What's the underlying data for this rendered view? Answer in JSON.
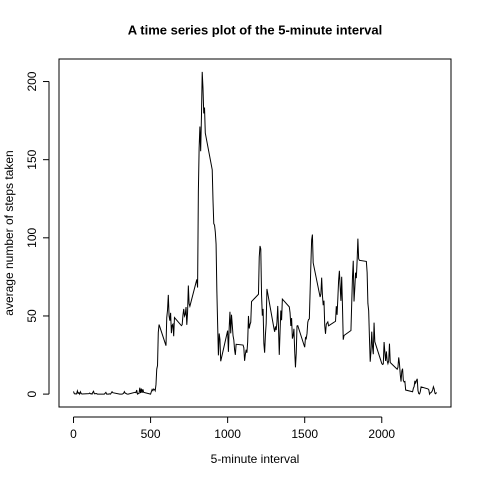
{
  "chart_data": {
    "type": "line",
    "title": "A time series plot of the 5-minute interval",
    "x_label": "5-minute interval",
    "y_label": "average number of steps taken",
    "color": "#000000",
    "x": [
      0,
      5,
      10,
      15,
      20,
      25,
      30,
      35,
      40,
      45,
      50,
      55,
      100,
      105,
      110,
      115,
      120,
      125,
      130,
      135,
      140,
      145,
      150,
      155,
      200,
      210,
      215,
      220,
      225,
      230,
      235,
      240,
      250,
      255,
      300,
      310,
      315,
      320,
      325,
      330,
      335,
      340,
      345,
      350,
      355,
      400,
      405,
      410,
      415,
      420,
      425,
      430,
      435,
      440,
      445,
      450,
      455,
      500,
      505,
      510,
      515,
      520,
      525,
      530,
      535,
      540,
      545,
      550,
      555,
      600,
      605,
      610,
      615,
      620,
      625,
      630,
      635,
      640,
      645,
      650,
      655,
      700,
      705,
      710,
      715,
      720,
      725,
      730,
      735,
      740,
      745,
      750,
      755,
      800,
      805,
      810,
      815,
      820,
      825,
      830,
      835,
      840,
      845,
      850,
      855,
      900,
      905,
      910,
      915,
      920,
      925,
      930,
      935,
      940,
      945,
      950,
      955,
      1000,
      1005,
      1010,
      1015,
      1020,
      1025,
      1030,
      1035,
      1040,
      1045,
      1050,
      1055,
      1100,
      1105,
      1110,
      1115,
      1120,
      1125,
      1130,
      1135,
      1140,
      1145,
      1150,
      1155,
      1200,
      1205,
      1210,
      1215,
      1220,
      1225,
      1230,
      1235,
      1240,
      1245,
      1250,
      1255,
      1300,
      1305,
      1310,
      1315,
      1320,
      1325,
      1330,
      1335,
      1340,
      1345,
      1350,
      1355,
      1400,
      1405,
      1410,
      1415,
      1420,
      1425,
      1430,
      1435,
      1440,
      1445,
      1450,
      1455,
      1500,
      1505,
      1510,
      1515,
      1520,
      1525,
      1530,
      1535,
      1540,
      1545,
      1550,
      1555,
      1600,
      1605,
      1610,
      1615,
      1620,
      1625,
      1630,
      1635,
      1640,
      1645,
      1650,
      1655,
      1700,
      1705,
      1710,
      1715,
      1720,
      1725,
      1730,
      1735,
      1740,
      1745,
      1750,
      1755,
      1800,
      1805,
      1810,
      1815,
      1820,
      1825,
      1830,
      1835,
      1840,
      1845,
      1850,
      1855,
      1900,
      1905,
      1910,
      1915,
      1920,
      1925,
      1930,
      1935,
      1940,
      1945,
      1950,
      1955,
      2000,
      2005,
      2010,
      2015,
      2020,
      2025,
      2030,
      2035,
      2040,
      2045,
      2050,
      2055,
      2100,
      2105,
      2110,
      2115,
      2120,
      2125,
      2130,
      2135,
      2140,
      2145,
      2150,
      2155,
      2200,
      2205,
      2210,
      2215,
      2220,
      2225,
      2230,
      2235,
      2240,
      2245,
      2250,
      2255,
      2300,
      2305,
      2310,
      2315,
      2320,
      2325,
      2330,
      2335,
      2340,
      2345,
      2350,
      2355
    ],
    "values": [
      1.7,
      0.3,
      0.1,
      0.2,
      0.1,
      2.1,
      0.5,
      0.9,
      0,
      1.5,
      0.3,
      0.1,
      0.3,
      0.7,
      0.2,
      0.3,
      0,
      1.1,
      1.8,
      0.2,
      0.2,
      0.4,
      0.3,
      0,
      0,
      1.1,
      0,
      0,
      0.1,
      0,
      0.2,
      0,
      1.5,
      0.9,
      0,
      0,
      0,
      0.2,
      0.6,
      1.6,
      0.6,
      0.5,
      0.1,
      0,
      0,
      1.2,
      0.9,
      2.6,
      0,
      0.3,
      0.4,
      4.1,
      0.7,
      3.5,
      0.8,
      3.1,
      1.1,
      0,
      1.6,
      3,
      2.2,
      3.3,
      3,
      2.1,
      6.1,
      16,
      18.3,
      39.5,
      44.5,
      31,
      49,
      53.8,
      63.5,
      50,
      47,
      52,
      39,
      44,
      44.7,
      37,
      49,
      43.8,
      44.4,
      50.5,
      54.5,
      49.9,
      51,
      55.7,
      44.3,
      52.3,
      69.5,
      57.8,
      56.2,
      73.4,
      68.2,
      129.4,
      157.5,
      171.2,
      155.4,
      177.3,
      206.2,
      195.9,
      179.6,
      183.4,
      167,
      143.5,
      124,
      109.1,
      108.1,
      103.7,
      96,
      66.2,
      45.2,
      24.8,
      38.8,
      35,
      21,
      40.6,
      27,
      42.4,
      52.7,
      38.9,
      50.8,
      44.3,
      37.4,
      34.7,
      28.3,
      25.1,
      31.9,
      31.4,
      29.7,
      21.3,
      25.5,
      28.4,
      26.5,
      33.4,
      50,
      42,
      44.6,
      46,
      59.2,
      63.9,
      87.7,
      94.8,
      92.8,
      63.4,
      50.2,
      54.5,
      32.4,
      26.5,
      37.7,
      45.1,
      67.3,
      42.3,
      39.9,
      43.3,
      41,
      46.2,
      56.4,
      42.8,
      25.1,
      40,
      53.5,
      47.3,
      60.8,
      55.8,
      52,
      43.6,
      48.7,
      35.5,
      37.5,
      41.8,
      27.5,
      17.1,
      26.1,
      43.6,
      43.8,
      30,
      36.1,
      35.5,
      38.8,
      46,
      47.8,
      48.1,
      65.3,
      82.9,
      98.7,
      102.1,
      84,
      62.1,
      64.1,
      74.5,
      63.2,
      56.9,
      59.8,
      43.9,
      38.6,
      44.7,
      45.5,
      46.2,
      43.7,
      46.6,
      56.3,
      50.7,
      61.2,
      72.7,
      78.9,
      68.9,
      59.7,
      75.1,
      56.5,
      34.8,
      37.5,
      40.7,
      58,
      74.7,
      85.3,
      59.3,
      67.8,
      77.7,
      74.2,
      85.3,
      99.5,
      86.6,
      85.6,
      84.9,
      77.8,
      58,
      53.4,
      36.3,
      20.7,
      27.4,
      40,
      30.2,
      25.5,
      45.7,
      33.5,
      19.6,
      19,
      19.3,
      33.3,
      26.8,
      21.2,
      27.3,
      21.3,
      19.5,
      21.3,
      32.3,
      20.2,
      15.9,
      17.2,
      23.5,
      19.2,
      12.5,
      8,
      14.7,
      16.3,
      8.7,
      7.8,
      8.1,
      2.6,
      1.5,
      3.7,
      4.8,
      8.5,
      7.1,
      8.7,
      9.8,
      2.2,
      0.3,
      0.1,
      1.6,
      4.6,
      3.3,
      2.8,
      0,
      0.8,
      1,
      1.6,
      2.6,
      4.7,
      3.3,
      0.6,
      0.2,
      1.1
    ],
    "xlim": [
      -94.2,
      2449.2
    ],
    "xticks": [
      0,
      500,
      1000,
      1500,
      2000
    ],
    "ylim": [
      -8.25,
      214.42
    ],
    "yticks": [
      0,
      50,
      100,
      150,
      200
    ]
  }
}
